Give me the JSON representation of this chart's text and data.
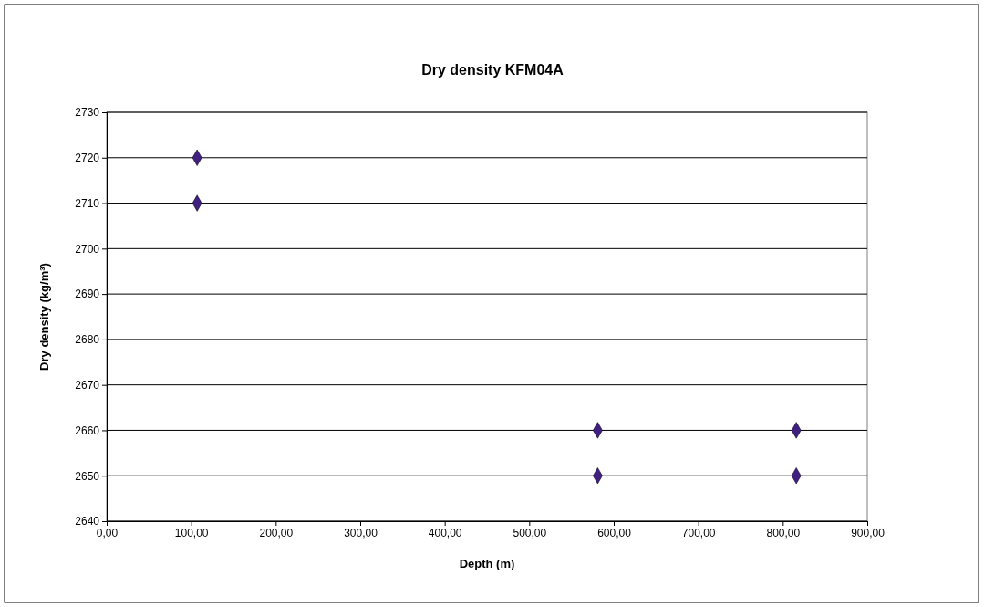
{
  "chart_data": {
    "type": "scatter",
    "title": "Dry density KFM04A",
    "xlabel": "Depth (m)",
    "ylabel": "Dry density (kg/m³)",
    "x": [
      107,
      107,
      581,
      581,
      816,
      816
    ],
    "values": [
      2720,
      2710,
      2660,
      2650,
      2660,
      2650
    ],
    "color": "#3f1f7f",
    "marker": "diamond",
    "grid": "y",
    "xlim": [
      0,
      900
    ],
    "ylim": [
      2640,
      2730
    ],
    "xticks": [
      {
        "value": 0,
        "label": "0,00"
      },
      {
        "value": 100,
        "label": "100,00"
      },
      {
        "value": 200,
        "label": "200,00"
      },
      {
        "value": 300,
        "label": "300,00"
      },
      {
        "value": 400,
        "label": "400,00"
      },
      {
        "value": 500,
        "label": "500,00"
      },
      {
        "value": 600,
        "label": "600,00"
      },
      {
        "value": 700,
        "label": "700,00"
      },
      {
        "value": 800,
        "label": "800,00"
      },
      {
        "value": 900,
        "label": "900,00"
      }
    ],
    "yticks": [
      2640,
      2650,
      2660,
      2670,
      2680,
      2690,
      2700,
      2710,
      2720,
      2730
    ]
  }
}
